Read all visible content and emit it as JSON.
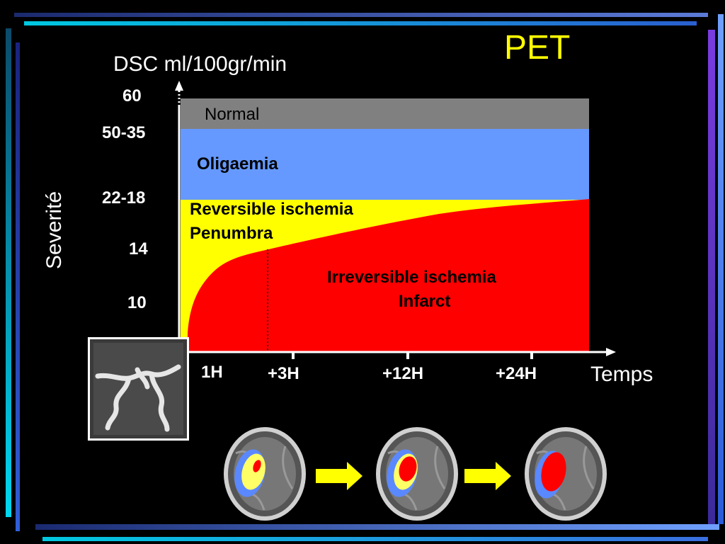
{
  "slide": {
    "title": "PET",
    "y_axis_title": "DSC ml/100gr/min",
    "side_label": "Severité",
    "x_axis_title": "Temps",
    "y_ticks": [
      "60",
      "50-35",
      "22-18",
      "14",
      "10"
    ],
    "x_ticks": [
      "1H",
      "+3H",
      "+12H",
      "+24H"
    ],
    "zones": {
      "normal": "Normal",
      "oligaemia": "Oligaemia",
      "reversible_line1": "Reversible ischemia",
      "reversible_line2": "Penumbra",
      "irreversible_line1": "Irreversible ischemia",
      "irreversible_line2": "Infarct"
    },
    "colors": {
      "background": "#000000",
      "title": "#ffff00",
      "normal": "#808080",
      "oligaemia": "#6699ff",
      "penumbra": "#ffff00",
      "infarct": "#ff0000",
      "arrow": "#ffff00"
    },
    "images": {
      "angiogram": "angiogram-thumbnail",
      "brain_scans": [
        "brain-scan-3h",
        "brain-scan-12h",
        "brain-scan-24h"
      ]
    }
  }
}
